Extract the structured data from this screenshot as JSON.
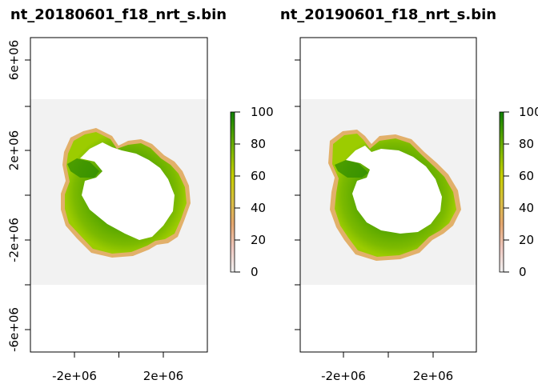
{
  "chart_data": [
    {
      "type": "heatmap",
      "title": "nt_20180601_f18_nrt_s.bin",
      "x_ticks": [
        "-2e+06",
        "2e+06"
      ],
      "y_ticks": [
        "6e+06",
        "2e+06",
        "-2e+06",
        "-6e+06"
      ],
      "colorbar": {
        "min": 0,
        "max": 100,
        "ticks": [
          "0",
          "20",
          "40",
          "60",
          "80",
          "100"
        ]
      },
      "colors": {
        "ice_high": "#1f8a00",
        "ice_mid": "#8fc400",
        "ice_low": "#e0b070",
        "no_data": "#f2f2f2",
        "land": "#ffffff"
      }
    },
    {
      "type": "heatmap",
      "title": "nt_20190601_f18_nrt_s.bin",
      "x_ticks": [
        "-2e+06",
        "2e+06"
      ],
      "y_ticks": [],
      "colorbar": {
        "min": 0,
        "max": 100,
        "ticks": [
          "0",
          "20",
          "40",
          "60",
          "80",
          "100"
        ]
      },
      "colors": {
        "ice_high": "#1f8a00",
        "ice_mid": "#8fc400",
        "ice_low": "#e0b070",
        "no_data": "#f2f2f2",
        "land": "#ffffff"
      }
    }
  ]
}
